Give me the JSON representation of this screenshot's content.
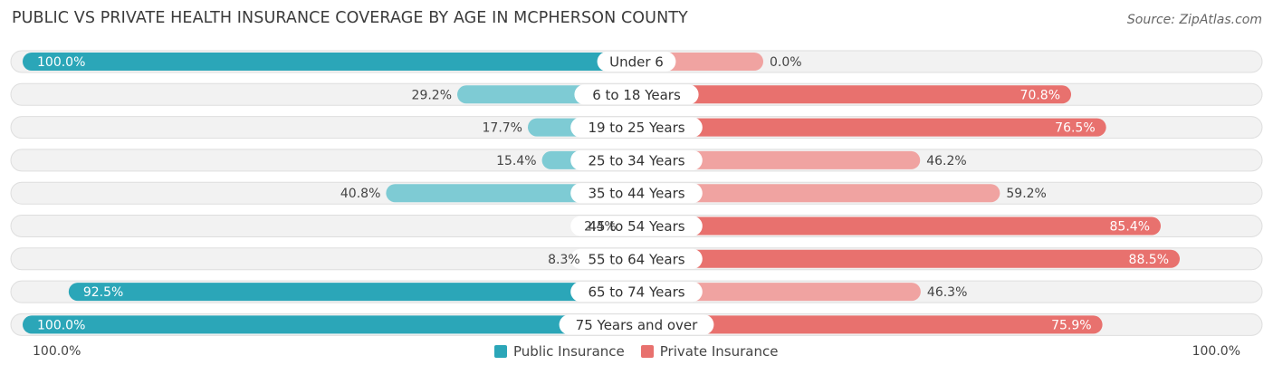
{
  "header": {
    "title": "PUBLIC VS PRIVATE HEALTH INSURANCE COVERAGE BY AGE IN MCPHERSON COUNTY",
    "source": "Source: ZipAtlas.com"
  },
  "axis": {
    "left_label": "100.0%",
    "right_label": "100.0%"
  },
  "legend": {
    "public_label": "Public Insurance",
    "private_label": "Private Insurance"
  },
  "colors": {
    "public_strong": "#2ba6b8",
    "public_light": "#7ecbd4",
    "private_strong": "#e8716e",
    "private_light": "#f0a3a1",
    "row_bg": "#f2f2f2"
  },
  "chart_data": {
    "type": "bar",
    "orientation": "horizontal-diverging",
    "title": "PUBLIC VS PRIVATE HEALTH INSURANCE COVERAGE BY AGE IN MCPHERSON COUNTY",
    "categories": [
      "Under 6",
      "6 to 18 Years",
      "19 to 25 Years",
      "25 to 34 Years",
      "35 to 44 Years",
      "45 to 54 Years",
      "55 to 64 Years",
      "65 to 74 Years",
      "75 Years and over"
    ],
    "series": [
      {
        "name": "Public Insurance",
        "values": [
          100.0,
          29.2,
          17.7,
          15.4,
          40.8,
          2.4,
          8.3,
          92.5,
          100.0
        ]
      },
      {
        "name": "Private Insurance",
        "values": [
          0.0,
          70.8,
          76.5,
          46.2,
          59.2,
          85.4,
          88.5,
          46.3,
          75.9
        ]
      }
    ],
    "value_labels": {
      "public": [
        "100.0%",
        "29.2%",
        "17.7%",
        "15.4%",
        "40.8%",
        "2.4%",
        "8.3%",
        "92.5%",
        "100.0%"
      ],
      "private": [
        "0.0%",
        "70.8%",
        "76.5%",
        "46.2%",
        "59.2%",
        "85.4%",
        "88.5%",
        "46.3%",
        "75.9%"
      ]
    },
    "xlim": [
      0,
      100
    ],
    "legend_position": "bottom-center",
    "grid": false
  }
}
